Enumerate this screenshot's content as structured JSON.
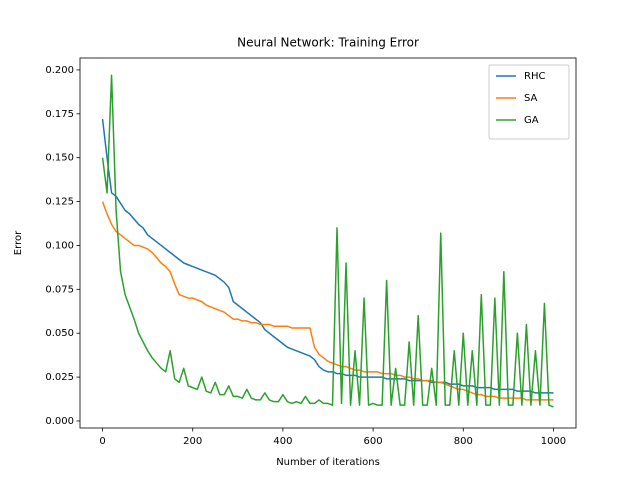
{
  "chart_data": {
    "type": "line",
    "title": "Neural Network: Training Error",
    "xlabel": "Number of iterations",
    "ylabel": "Error",
    "x": [
      0,
      10,
      20,
      30,
      40,
      50,
      60,
      70,
      80,
      90,
      100,
      110,
      120,
      130,
      140,
      150,
      160,
      170,
      180,
      190,
      200,
      210,
      220,
      230,
      240,
      250,
      260,
      270,
      280,
      290,
      300,
      310,
      320,
      330,
      340,
      350,
      360,
      370,
      380,
      390,
      400,
      410,
      420,
      430,
      440,
      450,
      460,
      470,
      480,
      490,
      500,
      510,
      520,
      530,
      540,
      550,
      560,
      570,
      580,
      590,
      600,
      610,
      620,
      630,
      640,
      650,
      660,
      670,
      680,
      690,
      700,
      710,
      720,
      730,
      740,
      750,
      760,
      770,
      780,
      790,
      800,
      810,
      820,
      830,
      840,
      850,
      860,
      870,
      880,
      890,
      900,
      910,
      920,
      930,
      940,
      950,
      960,
      970,
      980,
      990,
      1000
    ],
    "series": [
      {
        "name": "RHC",
        "color": "#1f77b4",
        "values": [
          0.172,
          0.15,
          0.13,
          0.128,
          0.124,
          0.12,
          0.118,
          0.115,
          0.112,
          0.11,
          0.106,
          0.104,
          0.102,
          0.1,
          0.098,
          0.096,
          0.094,
          0.092,
          0.09,
          0.089,
          0.088,
          0.087,
          0.086,
          0.085,
          0.084,
          0.083,
          0.081,
          0.079,
          0.076,
          0.068,
          0.066,
          0.064,
          0.062,
          0.06,
          0.058,
          0.056,
          0.052,
          0.05,
          0.048,
          0.046,
          0.044,
          0.042,
          0.041,
          0.04,
          0.039,
          0.038,
          0.037,
          0.035,
          0.031,
          0.029,
          0.028,
          0.028,
          0.027,
          0.027,
          0.026,
          0.026,
          0.026,
          0.025,
          0.025,
          0.025,
          0.025,
          0.025,
          0.025,
          0.024,
          0.024,
          0.024,
          0.024,
          0.024,
          0.023,
          0.023,
          0.023,
          0.023,
          0.023,
          0.022,
          0.022,
          0.022,
          0.022,
          0.021,
          0.021,
          0.021,
          0.02,
          0.02,
          0.02,
          0.019,
          0.019,
          0.019,
          0.019,
          0.018,
          0.018,
          0.018,
          0.018,
          0.018,
          0.017,
          0.017,
          0.017,
          0.017,
          0.016,
          0.016,
          0.016,
          0.016,
          0.016
        ]
      },
      {
        "name": "SA",
        "color": "#ff7f0e",
        "values": [
          0.125,
          0.118,
          0.112,
          0.108,
          0.106,
          0.104,
          0.102,
          0.1,
          0.1,
          0.099,
          0.098,
          0.096,
          0.093,
          0.09,
          0.088,
          0.085,
          0.078,
          0.072,
          0.071,
          0.07,
          0.07,
          0.069,
          0.068,
          0.066,
          0.065,
          0.064,
          0.063,
          0.062,
          0.06,
          0.058,
          0.058,
          0.057,
          0.057,
          0.056,
          0.056,
          0.055,
          0.055,
          0.055,
          0.054,
          0.054,
          0.054,
          0.054,
          0.053,
          0.053,
          0.053,
          0.053,
          0.053,
          0.042,
          0.038,
          0.036,
          0.034,
          0.033,
          0.032,
          0.031,
          0.031,
          0.03,
          0.029,
          0.029,
          0.028,
          0.028,
          0.028,
          0.028,
          0.027,
          0.027,
          0.027,
          0.026,
          0.026,
          0.025,
          0.025,
          0.024,
          0.024,
          0.023,
          0.023,
          0.023,
          0.022,
          0.022,
          0.021,
          0.02,
          0.019,
          0.018,
          0.018,
          0.017,
          0.016,
          0.015,
          0.015,
          0.014,
          0.014,
          0.014,
          0.013,
          0.013,
          0.013,
          0.013,
          0.013,
          0.013,
          0.012,
          0.012,
          0.012,
          0.012,
          0.012,
          0.012,
          0.012
        ]
      },
      {
        "name": "GA",
        "color": "#2ca02c",
        "values": [
          0.15,
          0.13,
          0.197,
          0.12,
          0.085,
          0.072,
          0.065,
          0.058,
          0.05,
          0.045,
          0.04,
          0.036,
          0.033,
          0.03,
          0.028,
          0.04,
          0.024,
          0.022,
          0.03,
          0.02,
          0.019,
          0.018,
          0.025,
          0.017,
          0.016,
          0.022,
          0.015,
          0.015,
          0.02,
          0.014,
          0.014,
          0.013,
          0.018,
          0.013,
          0.012,
          0.012,
          0.016,
          0.012,
          0.011,
          0.011,
          0.015,
          0.011,
          0.01,
          0.011,
          0.01,
          0.014,
          0.01,
          0.01,
          0.012,
          0.01,
          0.01,
          0.009,
          0.11,
          0.01,
          0.09,
          0.009,
          0.04,
          0.009,
          0.07,
          0.009,
          0.01,
          0.009,
          0.009,
          0.08,
          0.009,
          0.03,
          0.009,
          0.009,
          0.045,
          0.009,
          0.06,
          0.009,
          0.009,
          0.03,
          0.009,
          0.107,
          0.009,
          0.009,
          0.04,
          0.009,
          0.05,
          0.009,
          0.04,
          0.009,
          0.072,
          0.009,
          0.009,
          0.07,
          0.009,
          0.085,
          0.009,
          0.009,
          0.05,
          0.009,
          0.055,
          0.009,
          0.04,
          0.009,
          0.067,
          0.009,
          0.008
        ]
      }
    ],
    "xlim": [
      -50,
      1050
    ],
    "xticks": [
      0,
      200,
      400,
      600,
      800,
      1000
    ],
    "ylim": [
      -0.004,
      0.2068
    ],
    "yticks": [
      {
        "value": 0,
        "label": "0.000"
      },
      {
        "value": 0.025,
        "label": "0.025"
      },
      {
        "value": 0.05,
        "label": "0.050"
      },
      {
        "value": 0.075,
        "label": "0.075"
      },
      {
        "value": 0.1,
        "label": "0.100"
      },
      {
        "value": 0.125,
        "label": "0.125"
      },
      {
        "value": 0.15,
        "label": "0.150"
      },
      {
        "value": 0.175,
        "label": "0.175"
      },
      {
        "value": 0.2,
        "label": "0.200"
      }
    ],
    "grid": false,
    "legend": "upper right"
  }
}
